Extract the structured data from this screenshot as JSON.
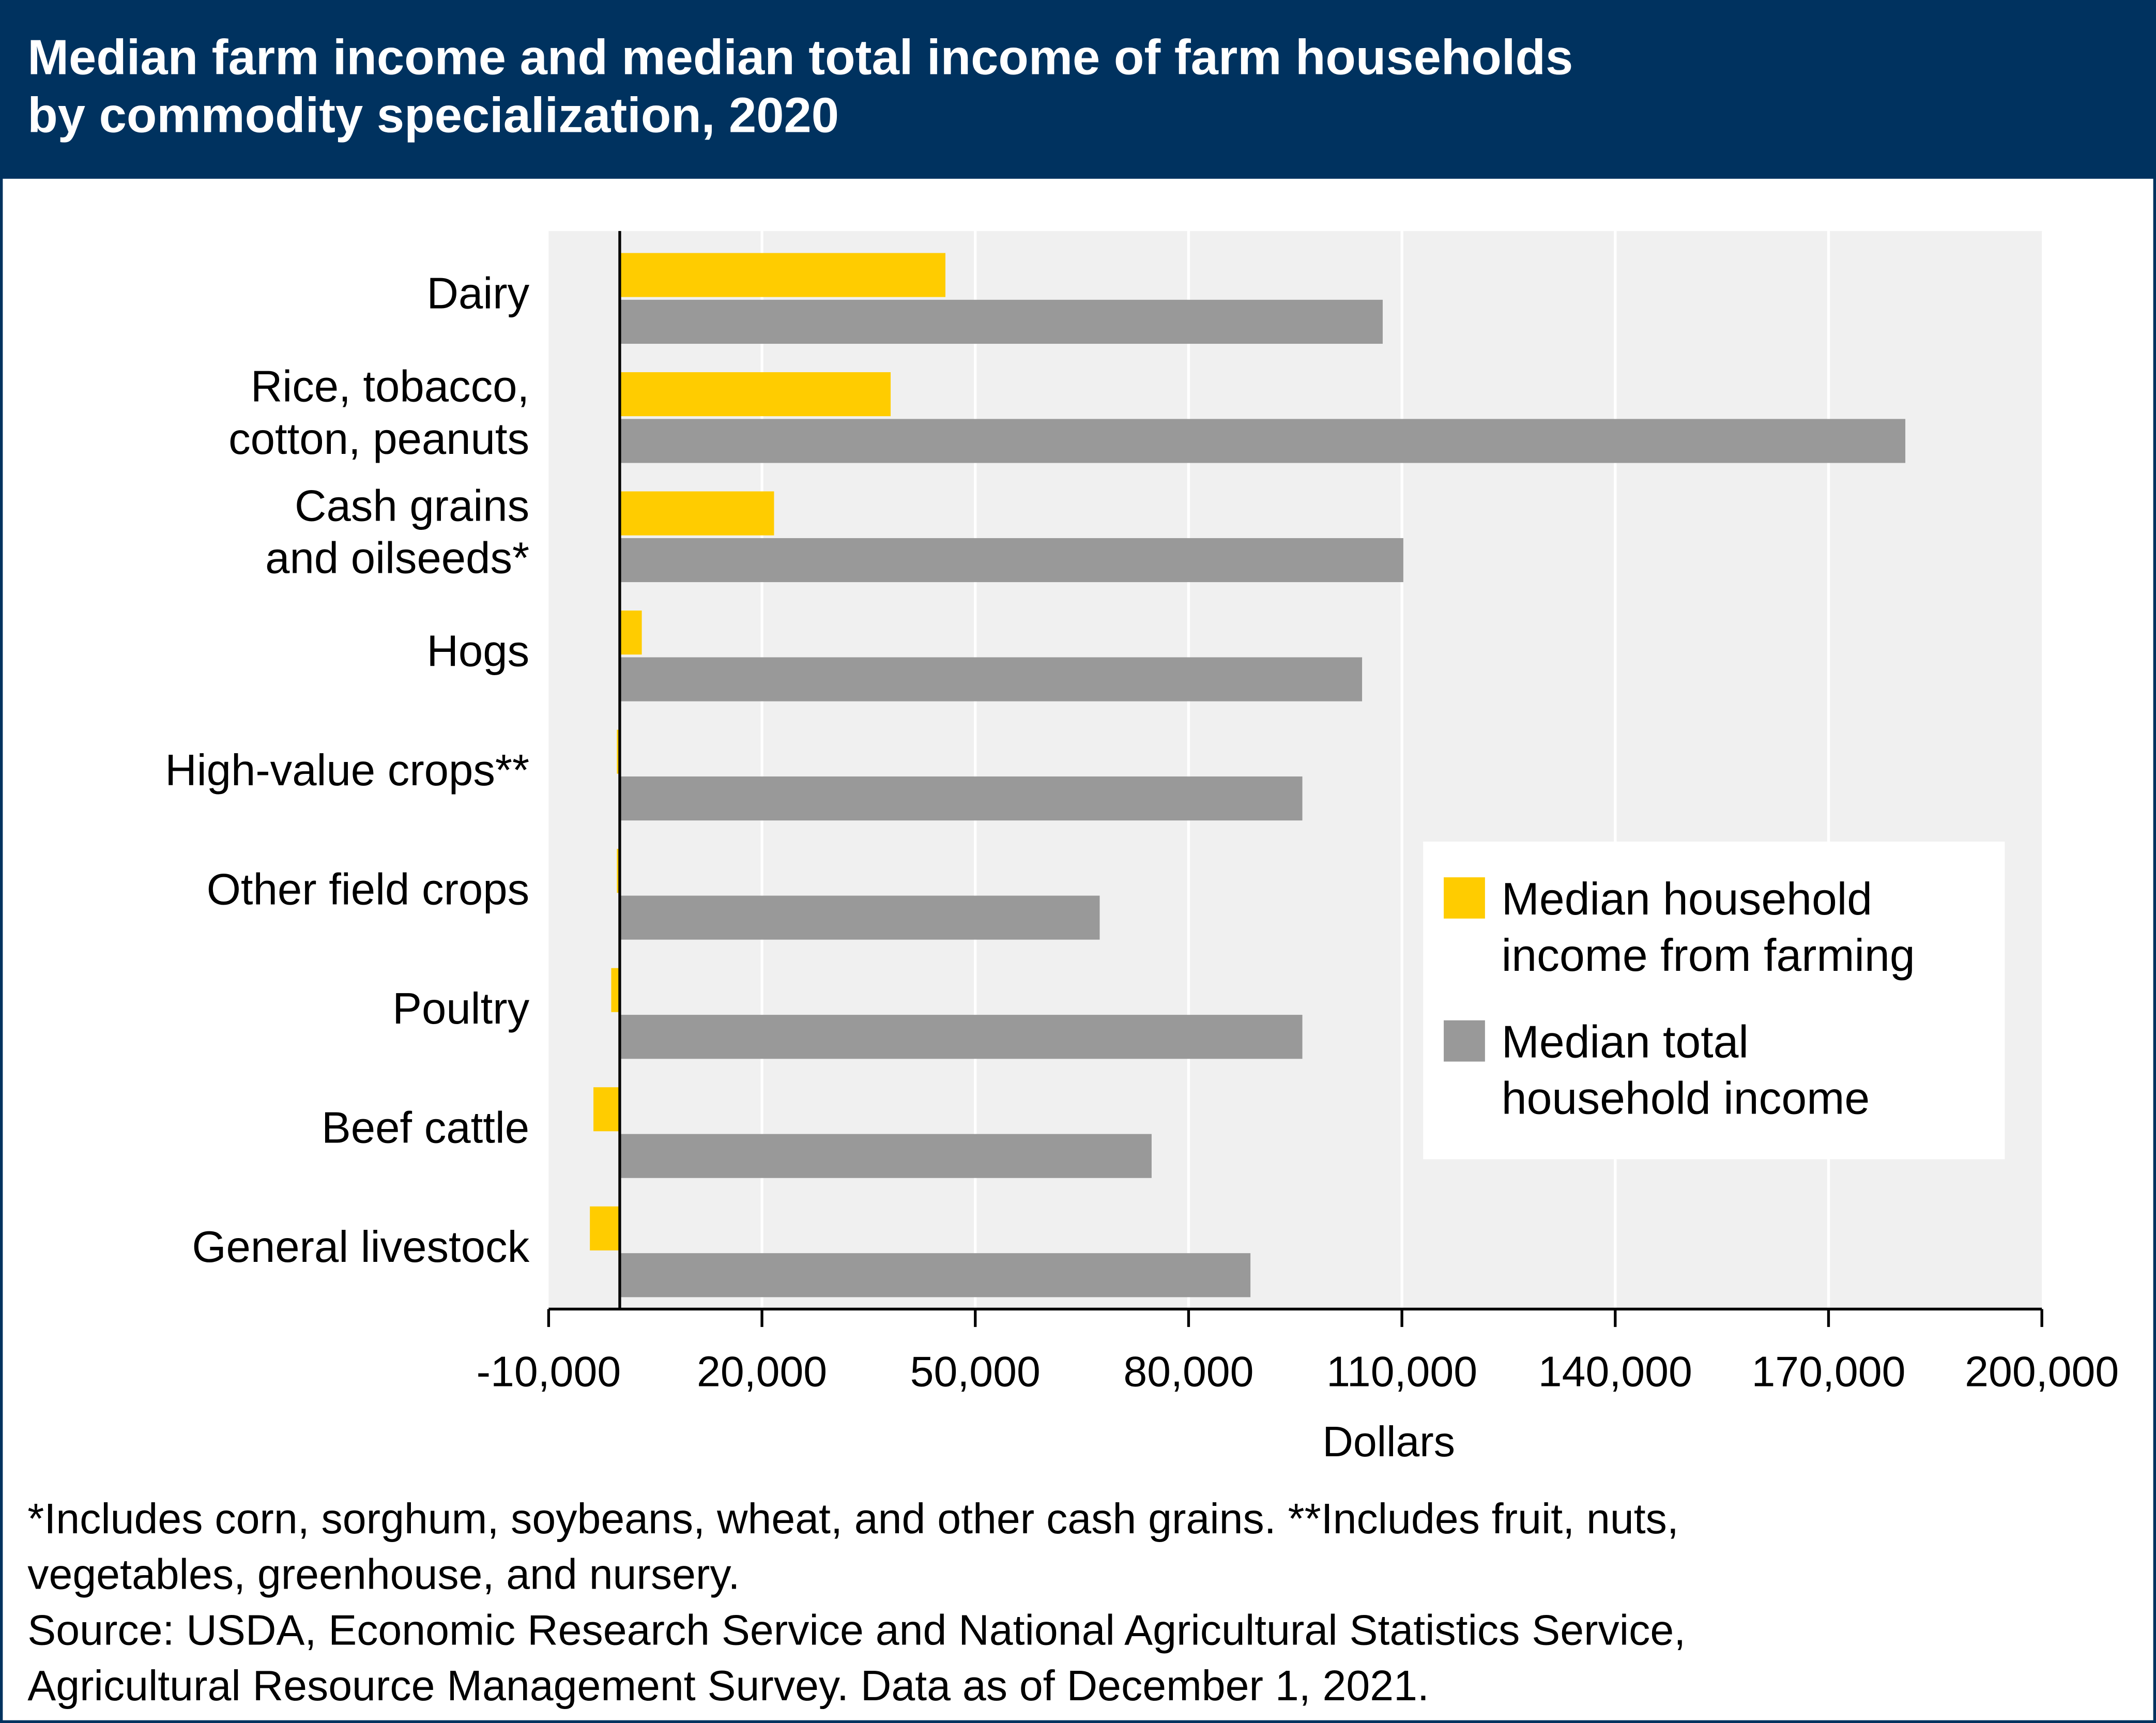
{
  "chart_data": {
    "type": "bar",
    "orientation": "horizontal",
    "title": [
      "Median farm income and median total income of farm households",
      "by commodity specialization, 2020"
    ],
    "categories": [
      [
        "Dairy"
      ],
      [
        "Rice, tobacco,",
        "cotton, peanuts"
      ],
      [
        "Cash grains",
        "and oilseeds*"
      ],
      [
        "Hogs"
      ],
      [
        "High-value crops**"
      ],
      [
        "Other field crops"
      ],
      [
        "Poultry"
      ],
      [
        "Beef cattle"
      ],
      [
        "General livestock"
      ]
    ],
    "series": [
      {
        "name": [
          "Median household",
          "income from farming"
        ],
        "color": "#ffcc00",
        "values": [
          45800,
          38100,
          21700,
          3100,
          -400,
          -400,
          -1200,
          -3700,
          -4200
        ]
      },
      {
        "name": [
          "Median total",
          "household income"
        ],
        "color": "#999999",
        "values": [
          107300,
          180800,
          110200,
          104400,
          96000,
          67500,
          96000,
          74800,
          88700
        ]
      }
    ],
    "xlim": [
      -10000,
      200000
    ],
    "xticks": [
      {
        "value": -10000,
        "label": "-10,000"
      },
      {
        "value": 20000,
        "label": "20,000"
      },
      {
        "value": 50000,
        "label": "50,000"
      },
      {
        "value": 80000,
        "label": "80,000"
      },
      {
        "value": 110000,
        "label": "110,000"
      },
      {
        "value": 140000,
        "label": "140,000"
      },
      {
        "value": 170000,
        "label": "170,000"
      },
      {
        "value": 200000,
        "label": "200,000"
      }
    ],
    "xlabel": "Dollars",
    "grid": true,
    "legend": "right",
    "notes": [
      "*Includes corn, sorghum, soybeans, wheat, and other cash grains. **Includes fruit, nuts,",
      "vegetables, greenhouse, and nursery.",
      "Source: USDA, Economic Research Service and National Agricultural Statistics Service,",
      "Agricultural Resource Management Survey. Data as of December 1, 2021."
    ]
  }
}
